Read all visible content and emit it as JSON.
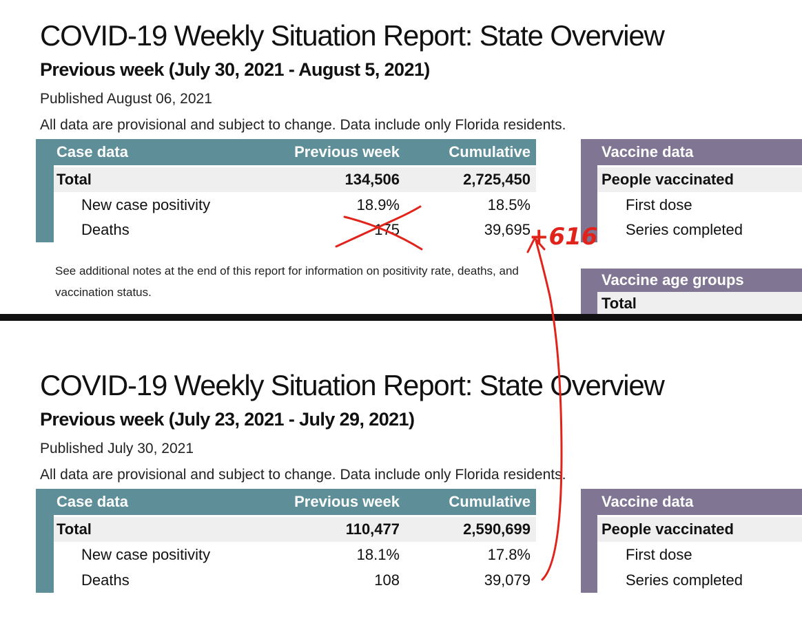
{
  "reports": [
    {
      "title": "COVID-19 Weekly Situation Report: State Overview",
      "subtitle": "Previous week (July 30, 2021 - August 5, 2021)",
      "published": "Published August 06, 2021",
      "disclaimer": "All data are provisional and subject to change. Data include only Florida residents.",
      "case_table": {
        "headers": [
          "Case data",
          "Previous week",
          "Cumulative"
        ],
        "rows": [
          {
            "label": "Total",
            "prev": "134,506",
            "cum": "2,725,450"
          },
          {
            "label": "New case positivity",
            "prev": "18.9%",
            "cum": "18.5%"
          },
          {
            "label": "Deaths",
            "prev": "175",
            "cum": "39,695"
          }
        ]
      },
      "vaccine_table": {
        "header": "Vaccine data",
        "rows": [
          "People vaccinated",
          "First dose",
          "Series completed"
        ]
      },
      "notes": "See additional notes at the end of this report for information on positivity rate, deaths, and vaccination status.",
      "age_groups": {
        "header": "Vaccine age groups",
        "row": "Total"
      }
    },
    {
      "title": "COVID-19 Weekly Situation Report: State Overview",
      "subtitle": "Previous week (July 23, 2021 - July 29, 2021)",
      "published": "Published July 30, 2021",
      "disclaimer": "All data are provisional and subject to change. Data include only Florida residents.",
      "case_table": {
        "headers": [
          "Case data",
          "Previous week",
          "Cumulative"
        ],
        "rows": [
          {
            "label": "Total",
            "prev": "110,477",
            "cum": "2,590,699"
          },
          {
            "label": "New case positivity",
            "prev": "18.1%",
            "cum": "17.8%"
          },
          {
            "label": "Deaths",
            "prev": "108",
            "cum": "39,079"
          }
        ]
      },
      "vaccine_table": {
        "header": "Vaccine data",
        "rows": [
          "People vaccinated",
          "First dose",
          "Series completed"
        ]
      }
    }
  ],
  "annotation": {
    "text": "+616",
    "color": "#e0231b"
  },
  "colors": {
    "case_header": "#5e8e98",
    "vaccine_header": "#807694",
    "total_row": "#efefef"
  }
}
